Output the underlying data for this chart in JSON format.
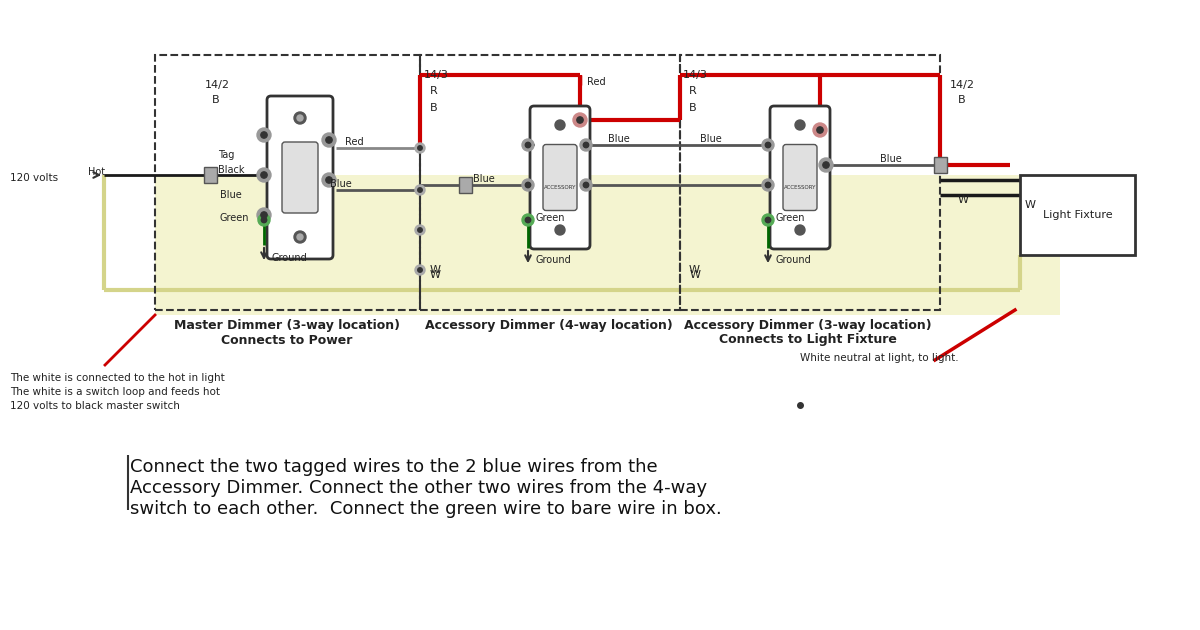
{
  "bg_color": "#ffffff",
  "bottom_text": "Connect the two tagged wires to the 2 blue wires from the\nAccessory Dimmer. Connect the other two wires from the 4-way\nswitch to each other.  Connect the green wire to bare wire in box.",
  "note_left_line1": "The white is connected to the hot in light",
  "note_left_line2": "The white is a switch loop and feeds hot",
  "note_left_line3": "120 volts to black master switch",
  "note_right": "White neutral at light, to light.",
  "dimmer1_label1": "Master Dimmer (3-way location)",
  "dimmer1_label2": "Connects to Power",
  "dimmer2_label1": "Accessory Dimmer (4-way location)",
  "dimmer3_label1": "Accessory Dimmer (3-way location)",
  "dimmer3_label2": "Connects to Light Fixture",
  "black": "#1a1a1a",
  "red": "#cc0000",
  "dark_gray": "#555555",
  "green_wire": "#006600",
  "yellow_wire": "#d4d48a",
  "gray_wire": "#888888"
}
